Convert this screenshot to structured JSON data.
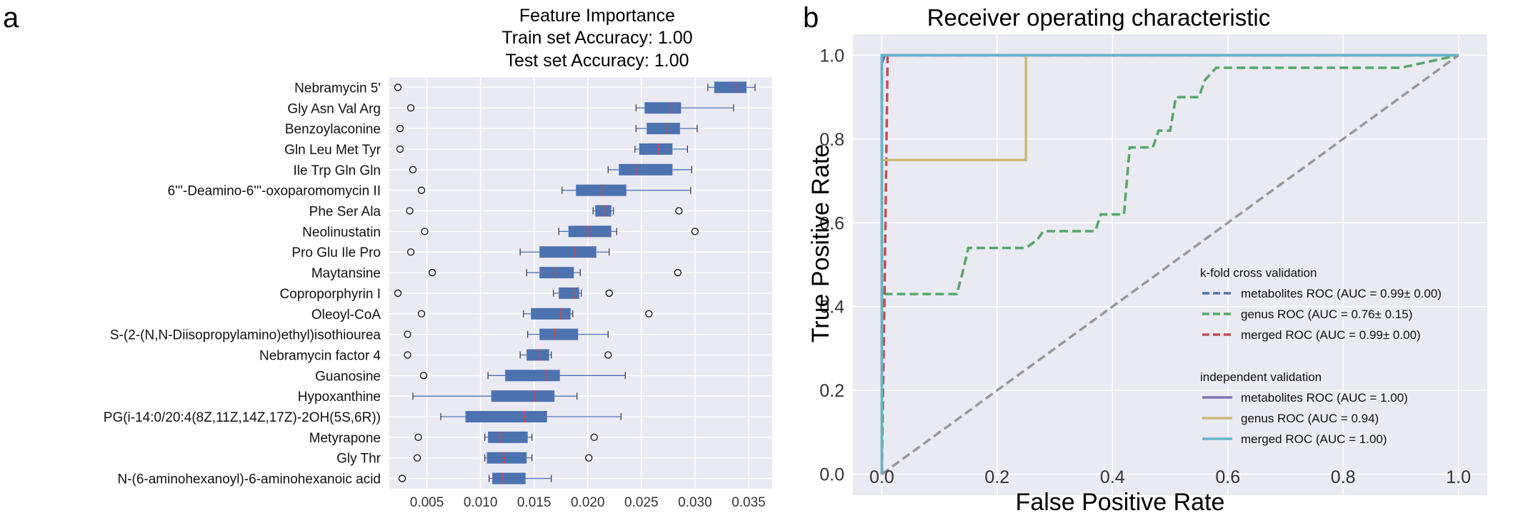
{
  "panel_labels": {
    "left": "a",
    "right": "b"
  },
  "chart_data": [
    {
      "type": "box",
      "title_lines": [
        "Feature Importance",
        "Train set Accuracy: 1.00",
        "Test set Accuracy: 1.00"
      ],
      "orientation": "horizontal",
      "xlim": [
        0.0015,
        0.0372
      ],
      "xticks": [
        0.005,
        0.01,
        0.015,
        0.02,
        0.025,
        0.03,
        0.035
      ],
      "xtick_labels": [
        "0.005",
        "0.010",
        "0.015",
        "0.020",
        "0.025",
        "0.030",
        "0.035"
      ],
      "grid": true,
      "colors": {
        "box": "#4c72b0",
        "median": "#dd4444",
        "background": "#eaeaf2"
      },
      "features": [
        {
          "name": "Nebramycin 5'",
          "whislo": 0.0312,
          "q1": 0.0318,
          "median": 0.0338,
          "q3": 0.0348,
          "whishi": 0.0356,
          "fliers": [
            0.0023
          ]
        },
        {
          "name": "Gly Asn Val Arg",
          "whislo": 0.0245,
          "q1": 0.0253,
          "median": 0.0278,
          "q3": 0.0287,
          "whishi": 0.0336,
          "fliers": [
            0.0035
          ]
        },
        {
          "name": "Benzoylaconine",
          "whislo": 0.0245,
          "q1": 0.0255,
          "median": 0.0274,
          "q3": 0.0286,
          "whishi": 0.0302,
          "fliers": [
            0.0025
          ]
        },
        {
          "name": "Gln Leu Met Tyr",
          "whislo": 0.0244,
          "q1": 0.0248,
          "median": 0.0266,
          "q3": 0.0279,
          "whishi": 0.0293,
          "fliers": [
            0.0025
          ]
        },
        {
          "name": "Ile Trp Gln Gln",
          "whislo": 0.0219,
          "q1": 0.0229,
          "median": 0.0246,
          "q3": 0.0279,
          "whishi": 0.0297,
          "fliers": [
            0.0037
          ]
        },
        {
          "name": "6'''-Deamino-6'''-oxoparomomycin II",
          "whislo": 0.0176,
          "q1": 0.0189,
          "median": 0.0213,
          "q3": 0.0236,
          "whishi": 0.0296,
          "fliers": [
            0.0045
          ]
        },
        {
          "name": "Phe Ser Ala",
          "whislo": 0.0205,
          "q1": 0.0207,
          "median": 0.0215,
          "q3": 0.0222,
          "whishi": 0.0224,
          "fliers": [
            0.0034,
            0.0285
          ]
        },
        {
          "name": "Neolinustatin",
          "whislo": 0.0173,
          "q1": 0.0182,
          "median": 0.02,
          "q3": 0.0222,
          "whishi": 0.0227,
          "fliers": [
            0.0048,
            0.03
          ]
        },
        {
          "name": "Pro Glu Ile Pro",
          "whislo": 0.0137,
          "q1": 0.0155,
          "median": 0.0188,
          "q3": 0.0208,
          "whishi": 0.022,
          "fliers": [
            0.0035
          ]
        },
        {
          "name": "Maytansine",
          "whislo": 0.0143,
          "q1": 0.0155,
          "median": 0.017,
          "q3": 0.0187,
          "whishi": 0.0193,
          "fliers": [
            0.0055,
            0.0284
          ]
        },
        {
          "name": "Coproporphyrin I",
          "whislo": 0.0168,
          "q1": 0.0173,
          "median": 0.0187,
          "q3": 0.0192,
          "whishi": 0.0194,
          "fliers": [
            0.0023,
            0.022
          ]
        },
        {
          "name": "Oleoyl-CoA",
          "whislo": 0.014,
          "q1": 0.0147,
          "median": 0.0175,
          "q3": 0.0184,
          "whishi": 0.0186,
          "fliers": [
            0.0045,
            0.0257
          ]
        },
        {
          "name": "S-(2-(N,N-Diisopropylamino)ethyl)isothiourea",
          "whislo": 0.0144,
          "q1": 0.0155,
          "median": 0.0169,
          "q3": 0.0191,
          "whishi": 0.0219,
          "fliers": [
            0.0032
          ]
        },
        {
          "name": "Nebramycin factor 4",
          "whislo": 0.0137,
          "q1": 0.0143,
          "median": 0.0155,
          "q3": 0.0164,
          "whishi": 0.0166,
          "fliers": [
            0.0032,
            0.0219
          ]
        },
        {
          "name": "Guanosine",
          "whislo": 0.0107,
          "q1": 0.0123,
          "median": 0.0161,
          "q3": 0.0174,
          "whishi": 0.0235,
          "fliers": [
            0.0047
          ]
        },
        {
          "name": "Hypoxanthine",
          "whislo": 0.0037,
          "q1": 0.011,
          "median": 0.015,
          "q3": 0.0169,
          "whishi": 0.019,
          "fliers": []
        },
        {
          "name": "PG(i-14:0/20:4(8Z,11Z,14Z,17Z)-2OH(5S,6R))",
          "whislo": 0.0063,
          "q1": 0.0086,
          "median": 0.0141,
          "q3": 0.0162,
          "whishi": 0.0231,
          "fliers": []
        },
        {
          "name": "Metyrapone",
          "whislo": 0.0104,
          "q1": 0.0107,
          "median": 0.0118,
          "q3": 0.0144,
          "whishi": 0.0148,
          "fliers": [
            0.0042,
            0.0206
          ]
        },
        {
          "name": "Gly Thr",
          "whislo": 0.0104,
          "q1": 0.0106,
          "median": 0.0122,
          "q3": 0.0143,
          "whishi": 0.0148,
          "fliers": [
            0.0041,
            0.0201
          ]
        },
        {
          "name": "N-(6-aminohexanoyl)-6-aminohexanoic acid",
          "whislo": 0.0108,
          "q1": 0.0111,
          "median": 0.0121,
          "q3": 0.0142,
          "whishi": 0.0166,
          "fliers": [
            0.0027
          ]
        }
      ]
    },
    {
      "type": "line",
      "title": "Receiver operating characteristic",
      "xlabel": "False Positive Rate",
      "ylabel": "True Positive Rate",
      "xlim": [
        -0.05,
        1.05
      ],
      "ylim": [
        -0.05,
        1.05
      ],
      "ticks": [
        0.0,
        0.2,
        0.4,
        0.6,
        0.8,
        1.0
      ],
      "tick_labels": [
        "0.0",
        "0.2",
        "0.4",
        "0.6",
        "0.8",
        "1.0"
      ],
      "grid": true,
      "legend_position": "lower-right",
      "legend_groups": [
        {
          "header": "k-fold cross validation",
          "items": [
            "metabolites ROC (AUC =  0.99±  0.00)",
            "genus ROC (AUC =  0.76±  0.15)",
            "merged ROC (AUC =  0.99±  0.00)"
          ]
        },
        {
          "header": "independent validation",
          "items": [
            "metabolites ROC (AUC = 1.00)",
            "genus ROC (AUC = 0.94)",
            "merged ROC (AUC = 1.00)"
          ]
        }
      ],
      "series": [
        {
          "name": "metabolites ROC (AUC =  0.99±  0.00)",
          "color": "#4c72b0",
          "dash": true,
          "x": [
            0,
            0,
            0.005,
            1
          ],
          "y": [
            0,
            0.98,
            1,
            1
          ]
        },
        {
          "name": "genus ROC (AUC =  0.76±  0.15)",
          "color": "#55a868",
          "dash": true,
          "x": [
            0,
            0,
            0.005,
            0.13,
            0.14,
            0.15,
            0.25,
            0.27,
            0.28,
            0.37,
            0.38,
            0.42,
            0.43,
            0.47,
            0.48,
            0.5,
            0.51,
            0.55,
            0.56,
            0.58,
            0.6,
            0.9,
            1.0
          ],
          "y": [
            0,
            0.4,
            0.43,
            0.43,
            0.48,
            0.54,
            0.54,
            0.56,
            0.58,
            0.58,
            0.62,
            0.62,
            0.78,
            0.78,
            0.82,
            0.82,
            0.9,
            0.9,
            0.94,
            0.97,
            0.97,
            0.97,
            1.0
          ]
        },
        {
          "name": "merged ROC (AUC =  0.99±  0.00)",
          "color": "#c44e52",
          "dash": true,
          "x": [
            0,
            0.005,
            0.01,
            0.01,
            1
          ],
          "y": [
            0,
            0.45,
            0.98,
            1,
            1
          ]
        },
        {
          "name": "metabolites ROC (AUC = 1.00)",
          "color": "#8172b2",
          "dash": false,
          "x": [
            0,
            0,
            1
          ],
          "y": [
            0,
            1,
            1
          ]
        },
        {
          "name": "genus ROC (AUC = 0.94)",
          "color": "#ccb974",
          "dash": false,
          "x": [
            0,
            0,
            0.25,
            0.25,
            1
          ],
          "y": [
            0,
            0.75,
            0.75,
            1,
            1
          ]
        },
        {
          "name": "merged ROC (AUC = 1.00)",
          "color": "#64b5cd",
          "dash": false,
          "x": [
            0,
            0,
            1
          ],
          "y": [
            0,
            1,
            1
          ]
        },
        {
          "name": "chance",
          "color": "#999999",
          "dash": true,
          "x": [
            0,
            1
          ],
          "y": [
            0,
            1
          ]
        }
      ]
    }
  ]
}
